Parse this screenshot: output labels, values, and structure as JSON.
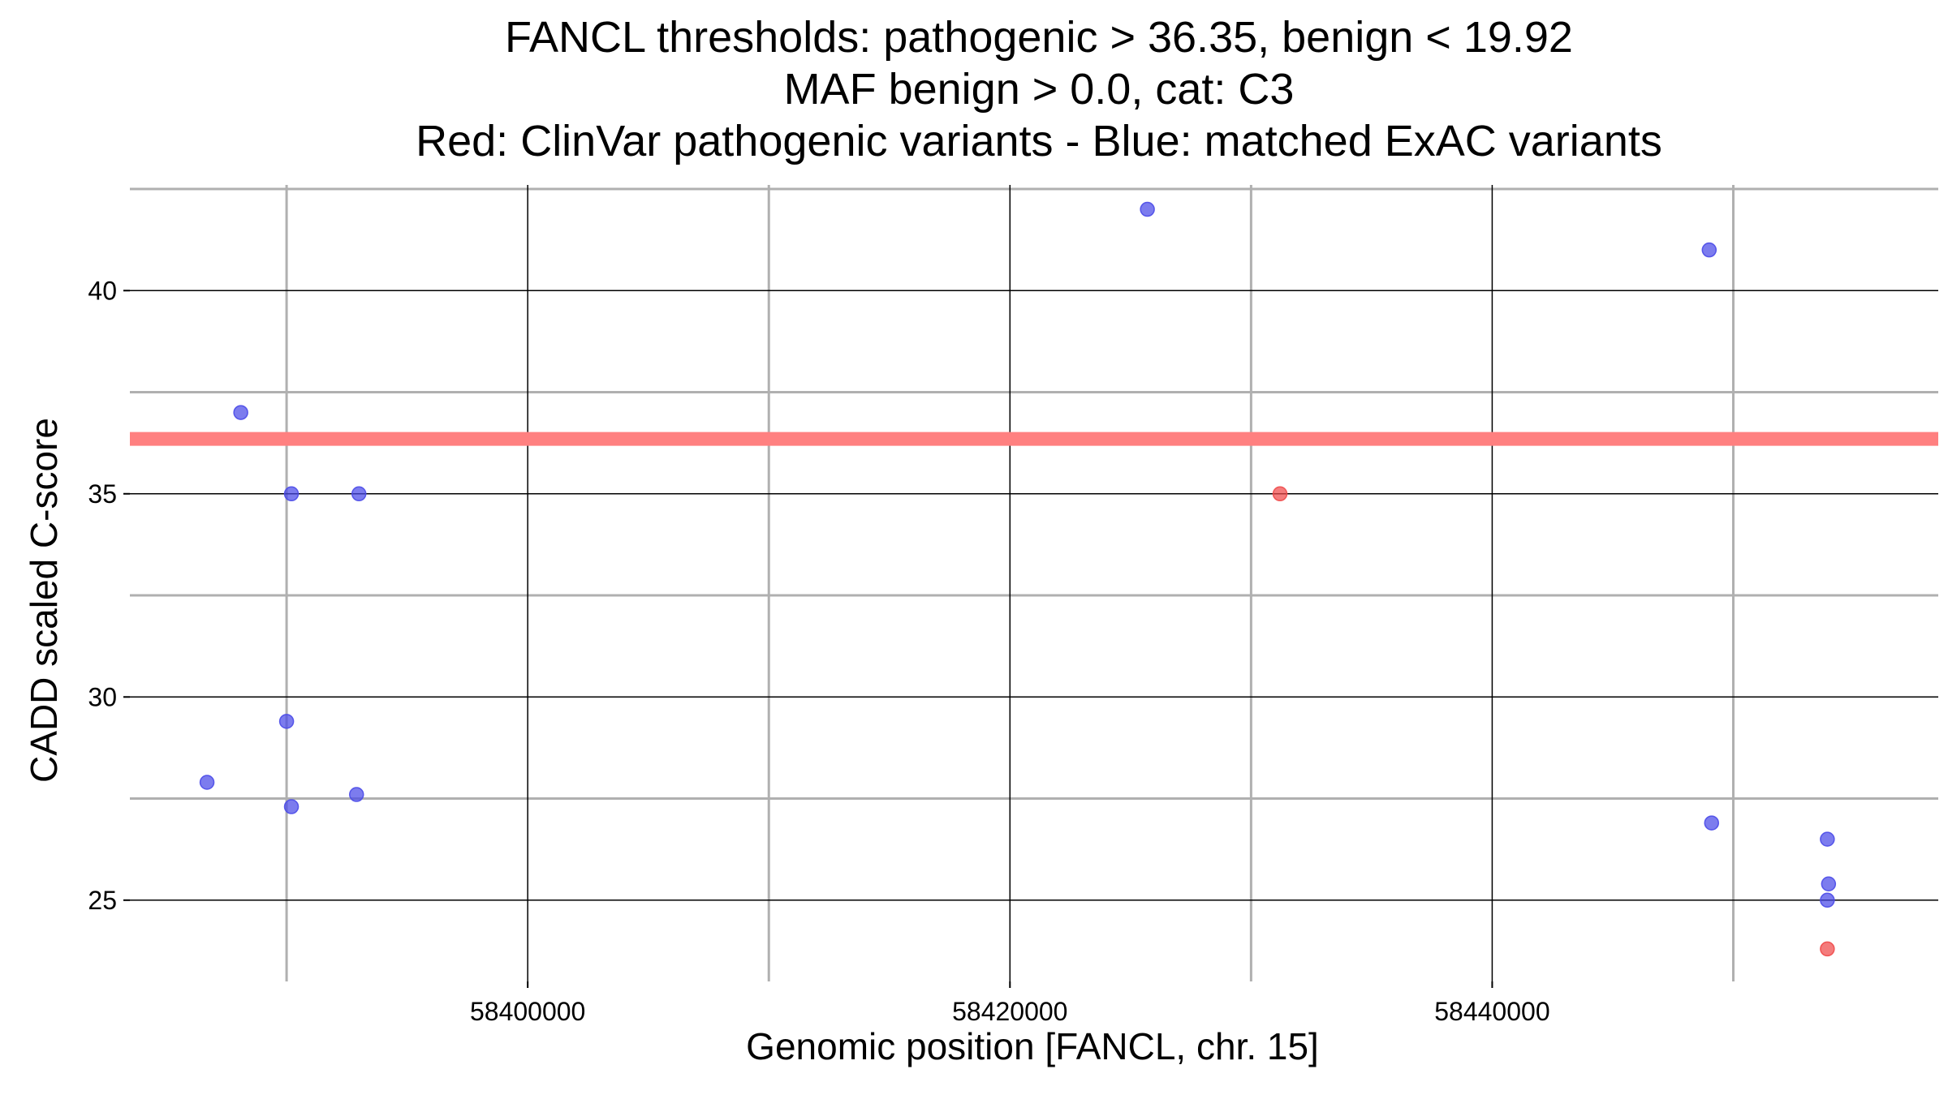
{
  "chart_data": {
    "type": "scatter",
    "title_lines": [
      "FANCL thresholds: pathogenic > 36.35, benign < 19.92",
      "MAF benign > 0.0, cat: C3",
      "Red: ClinVar pathogenic variants - Blue: matched ExAC variants"
    ],
    "xlabel": "Genomic position [FANCL, chr. 15]",
    "ylabel": "CADD scaled C-score",
    "xlim": [
      58383500,
      58458500
    ],
    "ylim": [
      23,
      42.6
    ],
    "x_ticks": [
      58400000,
      58420000,
      58440000
    ],
    "x_tick_labels": [
      "58400000",
      "58420000",
      "58440000"
    ],
    "x_minor_grid": [
      58390000,
      58410000,
      58430000,
      58450000
    ],
    "y_ticks": [
      25,
      30,
      35,
      40
    ],
    "y_tick_labels": [
      "25",
      "30",
      "35",
      "40"
    ],
    "y_minor_grid": [
      27.5,
      32.5,
      37.5,
      42.5
    ],
    "threshold_line": {
      "y": 36.35,
      "color": "#ff8080"
    },
    "grid": true,
    "legend": "none",
    "series": [
      {
        "color": "#4a4ae8",
        "points": [
          {
            "x": 58386700,
            "y": 27.9
          },
          {
            "x": 58388100,
            "y": 37.0
          },
          {
            "x": 58390000,
            "y": 29.4
          },
          {
            "x": 58390200,
            "y": 35.0
          },
          {
            "x": 58390200,
            "y": 27.3
          },
          {
            "x": 58392900,
            "y": 27.6
          },
          {
            "x": 58393000,
            "y": 35.0
          },
          {
            "x": 58425700,
            "y": 42.0
          },
          {
            "x": 58449000,
            "y": 41.0
          },
          {
            "x": 58449100,
            "y": 26.9
          },
          {
            "x": 58453900,
            "y": 26.5
          },
          {
            "x": 58453950,
            "y": 25.4
          },
          {
            "x": 58453900,
            "y": 25.0
          }
        ]
      },
      {
        "color": "#f04a4a",
        "points": [
          {
            "x": 58431200,
            "y": 35.0
          },
          {
            "x": 58453900,
            "y": 23.8
          }
        ]
      }
    ]
  }
}
